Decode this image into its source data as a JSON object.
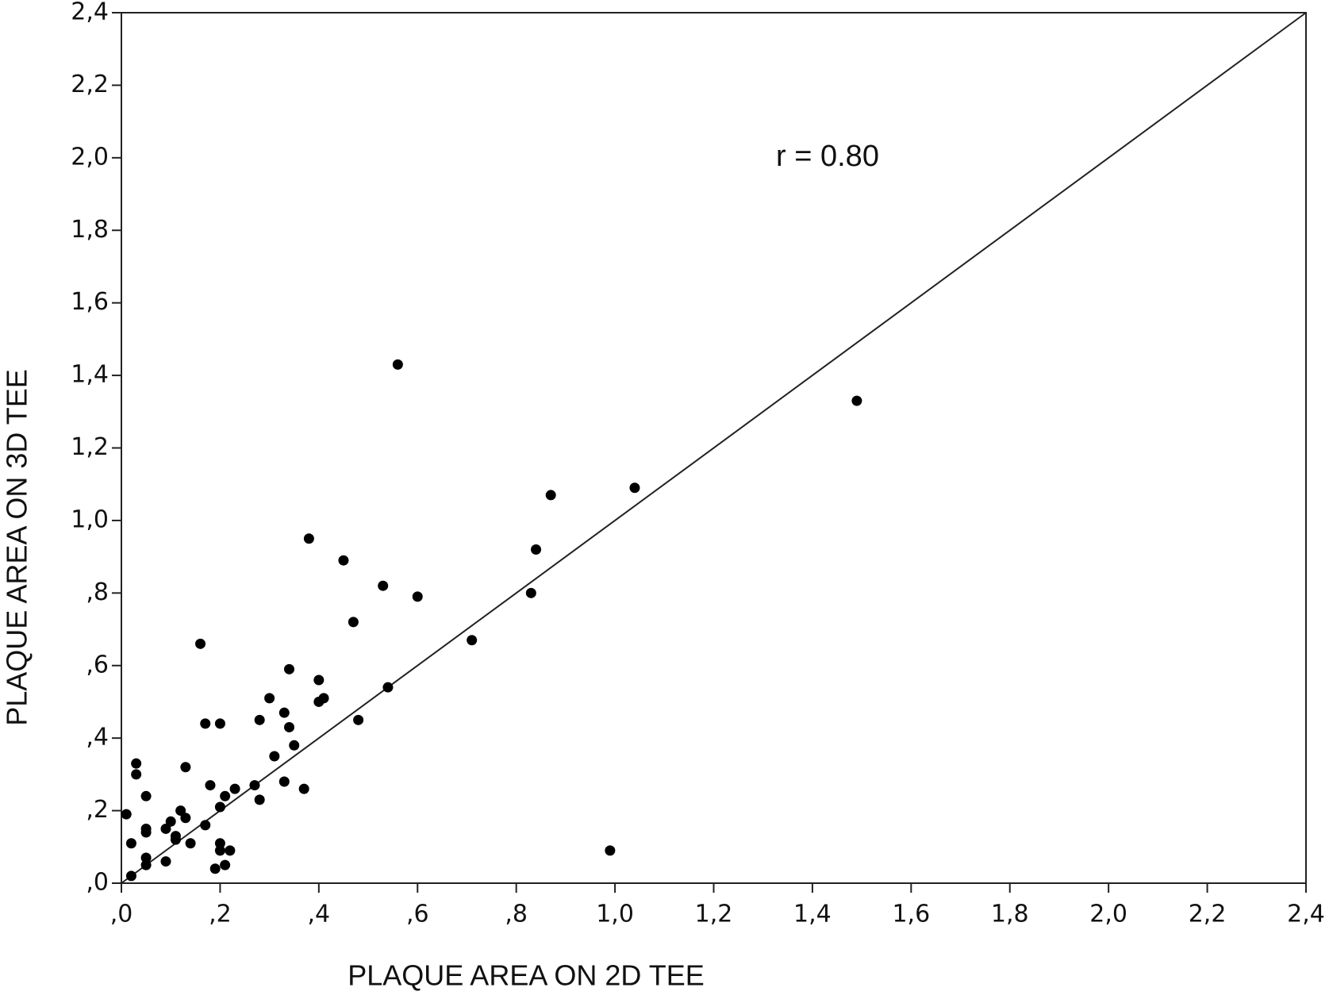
{
  "chart_data": {
    "type": "scatter",
    "x_label": "PLAQUE AREA ON 2D TEE",
    "y_label": "PLAQUE AREA ON 3D TEE",
    "annotation": "r = 0.80",
    "color": "#000000",
    "xlim": [
      0,
      2.4
    ],
    "ylim": [
      0,
      2.4
    ],
    "xticks": [
      {
        "value": 0,
        "label": ",0"
      },
      {
        "value": 0.2,
        "label": ",2"
      },
      {
        "value": 0.4,
        "label": ",4"
      },
      {
        "value": 0.6,
        "label": ",6"
      },
      {
        "value": 0.8,
        "label": ",8"
      },
      {
        "value": 1.0,
        "label": "1,0"
      },
      {
        "value": 1.2,
        "label": "1,2"
      },
      {
        "value": 1.4,
        "label": "1,4"
      },
      {
        "value": 1.6,
        "label": "1,6"
      },
      {
        "value": 1.8,
        "label": "1,8"
      },
      {
        "value": 2.0,
        "label": "2,0"
      },
      {
        "value": 2.2,
        "label": "2,2"
      },
      {
        "value": 2.4,
        "label": "2,4"
      }
    ],
    "yticks": [
      {
        "value": 0,
        "label": ",0"
      },
      {
        "value": 0.2,
        "label": ",2"
      },
      {
        "value": 0.4,
        "label": ",4"
      },
      {
        "value": 0.6,
        "label": ",6"
      },
      {
        "value": 0.8,
        "label": ",8"
      },
      {
        "value": 1.0,
        "label": "1,0"
      },
      {
        "value": 1.2,
        "label": "1,2"
      },
      {
        "value": 1.4,
        "label": "1,4"
      },
      {
        "value": 1.6,
        "label": "1,6"
      },
      {
        "value": 1.8,
        "label": "1,8"
      },
      {
        "value": 2.0,
        "label": "2,0"
      },
      {
        "value": 2.2,
        "label": "2,2"
      },
      {
        "value": 2.4,
        "label": "2,4"
      }
    ],
    "x": [
      0.01,
      0.02,
      0.02,
      0.03,
      0.03,
      0.05,
      0.05,
      0.05,
      0.05,
      0.05,
      0.09,
      0.1,
      0.09,
      0.11,
      0.11,
      0.12,
      0.13,
      0.13,
      0.14,
      0.16,
      0.17,
      0.17,
      0.18,
      0.19,
      0.2,
      0.2,
      0.2,
      0.2,
      0.21,
      0.21,
      0.22,
      0.23,
      0.27,
      0.28,
      0.28,
      0.3,
      0.31,
      0.33,
      0.33,
      0.34,
      0.34,
      0.35,
      0.37,
      0.38,
      0.4,
      0.4,
      0.41,
      0.45,
      0.47,
      0.48,
      0.53,
      0.54,
      0.56,
      0.6,
      0.71,
      0.83,
      0.84,
      0.87,
      0.99,
      1.04,
      1.49
    ],
    "y": [
      0.19,
      0.11,
      0.02,
      0.33,
      0.3,
      0.24,
      0.15,
      0.14,
      0.07,
      0.05,
      0.15,
      0.17,
      0.06,
      0.13,
      0.12,
      0.2,
      0.18,
      0.32,
      0.11,
      0.66,
      0.44,
      0.16,
      0.27,
      0.04,
      0.44,
      0.11,
      0.21,
      0.09,
      0.24,
      0.05,
      0.09,
      0.26,
      0.27,
      0.45,
      0.23,
      0.51,
      0.35,
      0.47,
      0.28,
      0.59,
      0.43,
      0.38,
      0.26,
      0.95,
      0.5,
      0.56,
      0.51,
      0.89,
      0.72,
      0.45,
      0.82,
      0.54,
      1.43,
      0.79,
      0.67,
      0.8,
      0.92,
      1.07,
      0.09,
      1.09,
      1.33
    ]
  }
}
